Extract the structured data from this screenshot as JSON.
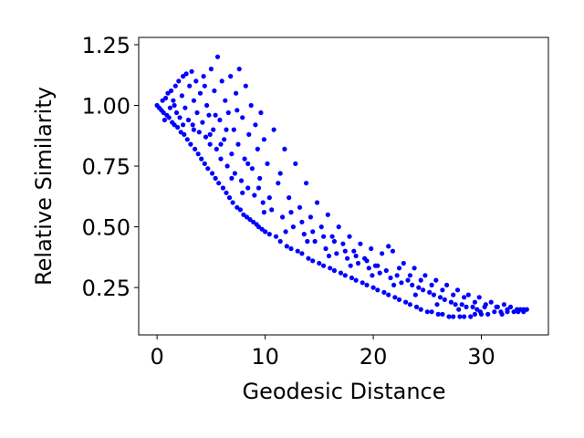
{
  "chart_data": {
    "type": "scatter",
    "title": "",
    "xlabel": "Geodesic Distance",
    "ylabel": "Relative Similarity",
    "xlim": [
      -1.7,
      36.2
    ],
    "ylim": [
      0.055,
      1.28
    ],
    "xticks": [
      0,
      10,
      20,
      30
    ],
    "xtick_labels": [
      "0",
      "10",
      "20",
      "30"
    ],
    "yticks": [
      0.25,
      0.5,
      0.75,
      1.0,
      1.25
    ],
    "ytick_labels": [
      "0.25",
      "0.50",
      "0.75",
      "1.00",
      "1.25"
    ],
    "grid": false,
    "legend": "none",
    "marker_color": "#0000ff",
    "series": [
      {
        "points": [
          [
            0.0,
            1.0
          ],
          [
            0.2,
            0.99
          ],
          [
            0.4,
            0.98
          ],
          [
            0.5,
            1.02
          ],
          [
            0.6,
            0.97
          ],
          [
            0.8,
            1.03
          ],
          [
            0.9,
            0.96
          ],
          [
            1.0,
            1.05
          ],
          [
            1.1,
            0.95
          ],
          [
            1.2,
            0.99
          ],
          [
            1.3,
            1.06
          ],
          [
            1.4,
            0.93
          ],
          [
            1.5,
            1.02
          ],
          [
            1.6,
            0.92
          ],
          [
            1.7,
            1.08
          ],
          [
            1.8,
            0.97
          ],
          [
            1.9,
            0.91
          ],
          [
            2.0,
            1.1
          ],
          [
            2.1,
            0.95
          ],
          [
            2.2,
            0.89
          ],
          [
            2.3,
            1.04
          ],
          [
            2.4,
            1.12
          ],
          [
            2.5,
            0.88
          ],
          [
            2.6,
            0.99
          ],
          [
            2.7,
            1.13
          ],
          [
            2.8,
            0.86
          ],
          [
            2.9,
            0.94
          ],
          [
            3.0,
            1.08
          ],
          [
            3.1,
            0.84
          ],
          [
            3.2,
            1.14
          ],
          [
            3.3,
            0.92
          ],
          [
            3.4,
            1.02
          ],
          [
            3.5,
            0.82
          ],
          [
            3.6,
            1.1
          ],
          [
            3.7,
            0.97
          ],
          [
            3.8,
            0.8
          ],
          [
            3.9,
            0.89
          ],
          [
            4.0,
            1.05
          ],
          [
            4.1,
            0.78
          ],
          [
            4.2,
            0.93
          ],
          [
            4.3,
            1.12
          ],
          [
            4.4,
            0.76
          ],
          [
            4.5,
            0.87
          ],
          [
            4.6,
            1.0
          ],
          [
            4.7,
            0.74
          ],
          [
            4.8,
            0.96
          ],
          [
            4.9,
            0.84
          ],
          [
            5.0,
            1.15
          ],
          [
            5.1,
            0.72
          ],
          [
            5.2,
            0.9
          ],
          [
            5.3,
            1.06
          ],
          [
            5.4,
            0.7
          ],
          [
            5.5,
            0.82
          ],
          [
            5.6,
            1.2
          ],
          [
            5.7,
            0.68
          ],
          [
            5.8,
            0.94
          ],
          [
            5.9,
            0.78
          ],
          [
            6.0,
            1.1
          ],
          [
            6.1,
            0.66
          ],
          [
            6.2,
            0.86
          ],
          [
            6.3,
            1.02
          ],
          [
            6.4,
            0.64
          ],
          [
            6.5,
            0.75
          ],
          [
            6.6,
            0.97
          ],
          [
            6.7,
            0.62
          ],
          [
            6.8,
            1.12
          ],
          [
            6.9,
            0.8
          ],
          [
            7.0,
            0.6
          ],
          [
            7.1,
            0.9
          ],
          [
            7.2,
            0.72
          ],
          [
            7.3,
            1.05
          ],
          [
            7.4,
            0.58
          ],
          [
            7.5,
            0.84
          ],
          [
            7.6,
            1.15
          ],
          [
            7.7,
            0.57
          ],
          [
            7.8,
            0.69
          ],
          [
            7.9,
            0.95
          ],
          [
            8.0,
            0.55
          ],
          [
            8.1,
            0.78
          ],
          [
            8.2,
            1.08
          ],
          [
            8.3,
            0.54
          ],
          [
            8.4,
            0.66
          ],
          [
            8.5,
            0.88
          ],
          [
            8.6,
            0.53
          ],
          [
            8.7,
            1.0
          ],
          [
            8.8,
            0.74
          ],
          [
            8.9,
            0.52
          ],
          [
            9.0,
            0.63
          ],
          [
            9.1,
            0.92
          ],
          [
            9.2,
            0.51
          ],
          [
            9.3,
            0.82
          ],
          [
            9.4,
            0.5
          ],
          [
            9.5,
            0.7
          ],
          [
            9.6,
            0.97
          ],
          [
            9.7,
            0.49
          ],
          [
            9.8,
            0.6
          ],
          [
            9.9,
            0.86
          ],
          [
            10.0,
            0.48
          ],
          [
            10.2,
            0.76
          ],
          [
            10.4,
            0.47
          ],
          [
            10.6,
            0.57
          ],
          [
            10.8,
            0.9
          ],
          [
            11.0,
            0.46
          ],
          [
            11.2,
            0.68
          ],
          [
            11.4,
            0.44
          ],
          [
            11.6,
            0.54
          ],
          [
            11.8,
            0.82
          ],
          [
            12.0,
            0.42
          ],
          [
            12.2,
            0.62
          ],
          [
            12.4,
            0.41
          ],
          [
            12.6,
            0.5
          ],
          [
            12.8,
            0.76
          ],
          [
            13.0,
            0.4
          ],
          [
            13.2,
            0.58
          ],
          [
            13.4,
            0.39
          ],
          [
            13.6,
            0.47
          ],
          [
            13.8,
            0.68
          ],
          [
            14.0,
            0.37
          ],
          [
            14.2,
            0.54
          ],
          [
            14.4,
            0.36
          ],
          [
            14.6,
            0.44
          ],
          [
            14.8,
            0.6
          ],
          [
            15.0,
            0.35
          ],
          [
            15.2,
            0.5
          ],
          [
            15.4,
            0.34
          ],
          [
            15.6,
            0.41
          ],
          [
            15.8,
            0.55
          ],
          [
            16.0,
            0.33
          ],
          [
            16.2,
            0.46
          ],
          [
            16.4,
            0.32
          ],
          [
            16.6,
            0.39
          ],
          [
            16.8,
            0.5
          ],
          [
            17.0,
            0.31
          ],
          [
            17.2,
            0.43
          ],
          [
            17.4,
            0.3
          ],
          [
            17.6,
            0.37
          ],
          [
            17.8,
            0.46
          ],
          [
            18.0,
            0.29
          ],
          [
            18.2,
            0.4
          ],
          [
            18.4,
            0.28
          ],
          [
            18.6,
            0.35
          ],
          [
            18.8,
            0.43
          ],
          [
            19.0,
            0.27
          ],
          [
            19.2,
            0.37
          ],
          [
            19.4,
            0.26
          ],
          [
            19.6,
            0.33
          ],
          [
            19.8,
            0.41
          ],
          [
            20.0,
            0.25
          ],
          [
            20.2,
            0.34
          ],
          [
            20.4,
            0.24
          ],
          [
            20.6,
            0.31
          ],
          [
            20.8,
            0.39
          ],
          [
            21.0,
            0.23
          ],
          [
            21.2,
            0.32
          ],
          [
            21.4,
            0.22
          ],
          [
            21.6,
            0.29
          ],
          [
            21.8,
            0.4
          ],
          [
            22.0,
            0.21
          ],
          [
            22.2,
            0.3
          ],
          [
            22.4,
            0.2
          ],
          [
            22.6,
            0.27
          ],
          [
            22.8,
            0.35
          ],
          [
            23.0,
            0.19
          ],
          [
            23.2,
            0.28
          ],
          [
            23.4,
            0.18
          ],
          [
            23.6,
            0.26
          ],
          [
            23.8,
            0.33
          ],
          [
            24.0,
            0.17
          ],
          [
            24.2,
            0.25
          ],
          [
            24.4,
            0.16
          ],
          [
            24.6,
            0.24
          ],
          [
            24.8,
            0.3
          ],
          [
            25.0,
            0.15
          ],
          [
            25.2,
            0.23
          ],
          [
            25.4,
            0.15
          ],
          [
            25.6,
            0.22
          ],
          [
            25.8,
            0.28
          ],
          [
            26.0,
            0.14
          ],
          [
            26.2,
            0.21
          ],
          [
            26.4,
            0.14
          ],
          [
            26.6,
            0.2
          ],
          [
            26.8,
            0.26
          ],
          [
            27.0,
            0.13
          ],
          [
            27.2,
            0.19
          ],
          [
            27.4,
            0.13
          ],
          [
            27.6,
            0.18
          ],
          [
            27.8,
            0.24
          ],
          [
            28.0,
            0.13
          ],
          [
            28.2,
            0.18
          ],
          [
            28.4,
            0.13
          ],
          [
            28.6,
            0.17
          ],
          [
            28.8,
            0.22
          ],
          [
            29.0,
            0.13
          ],
          [
            29.2,
            0.17
          ],
          [
            29.4,
            0.14
          ],
          [
            29.6,
            0.16
          ],
          [
            29.8,
            0.21
          ],
          [
            30.0,
            0.14
          ],
          [
            30.3,
            0.17
          ],
          [
            30.6,
            0.14
          ],
          [
            30.9,
            0.19
          ],
          [
            31.2,
            0.15
          ],
          [
            31.5,
            0.17
          ],
          [
            31.8,
            0.15
          ],
          [
            32.1,
            0.18
          ],
          [
            32.4,
            0.15
          ],
          [
            32.7,
            0.17
          ],
          [
            33.0,
            0.15
          ],
          [
            33.3,
            0.16
          ],
          [
            33.6,
            0.16
          ],
          [
            33.9,
            0.16
          ],
          [
            34.2,
            0.16
          ],
          [
            0.7,
            0.94
          ],
          [
            1.6,
            1.0
          ],
          [
            2.4,
            0.92
          ],
          [
            3.4,
            0.9
          ],
          [
            4.4,
            1.08
          ],
          [
            5.4,
            0.96
          ],
          [
            6.4,
            0.9
          ],
          [
            7.4,
            0.98
          ],
          [
            8.4,
            0.76
          ],
          [
            9.4,
            0.66
          ],
          [
            10.4,
            0.62
          ],
          [
            11.4,
            0.72
          ],
          [
            12.4,
            0.56
          ],
          [
            13.4,
            0.52
          ],
          [
            14.4,
            0.48
          ],
          [
            15.4,
            0.46
          ],
          [
            16.4,
            0.44
          ],
          [
            17.4,
            0.4
          ],
          [
            18.4,
            0.38
          ],
          [
            19.4,
            0.36
          ],
          [
            20.4,
            0.34
          ],
          [
            21.4,
            0.42
          ],
          [
            22.4,
            0.33
          ],
          [
            23.4,
            0.3
          ],
          [
            24.4,
            0.28
          ],
          [
            25.4,
            0.26
          ],
          [
            26.4,
            0.24
          ],
          [
            27.4,
            0.22
          ],
          [
            28.4,
            0.21
          ],
          [
            29.4,
            0.19
          ],
          [
            30.4,
            0.18
          ],
          [
            31.4,
            0.17
          ],
          [
            32.4,
            0.16
          ],
          [
            33.4,
            0.15
          ],
          [
            4.9,
            0.88
          ],
          [
            5.9,
            0.84
          ],
          [
            6.9,
            0.7
          ],
          [
            7.9,
            0.64
          ],
          [
            9.9,
            0.56
          ],
          [
            11.9,
            0.48
          ],
          [
            13.9,
            0.44
          ],
          [
            15.9,
            0.38
          ],
          [
            17.9,
            0.34
          ],
          [
            19.9,
            0.3
          ],
          [
            21.9,
            0.26
          ],
          [
            23.9,
            0.22
          ],
          [
            25.9,
            0.18
          ],
          [
            27.9,
            0.16
          ],
          [
            29.9,
            0.15
          ],
          [
            31.9,
            0.14
          ],
          [
            33.9,
            0.15
          ]
        ]
      }
    ]
  }
}
